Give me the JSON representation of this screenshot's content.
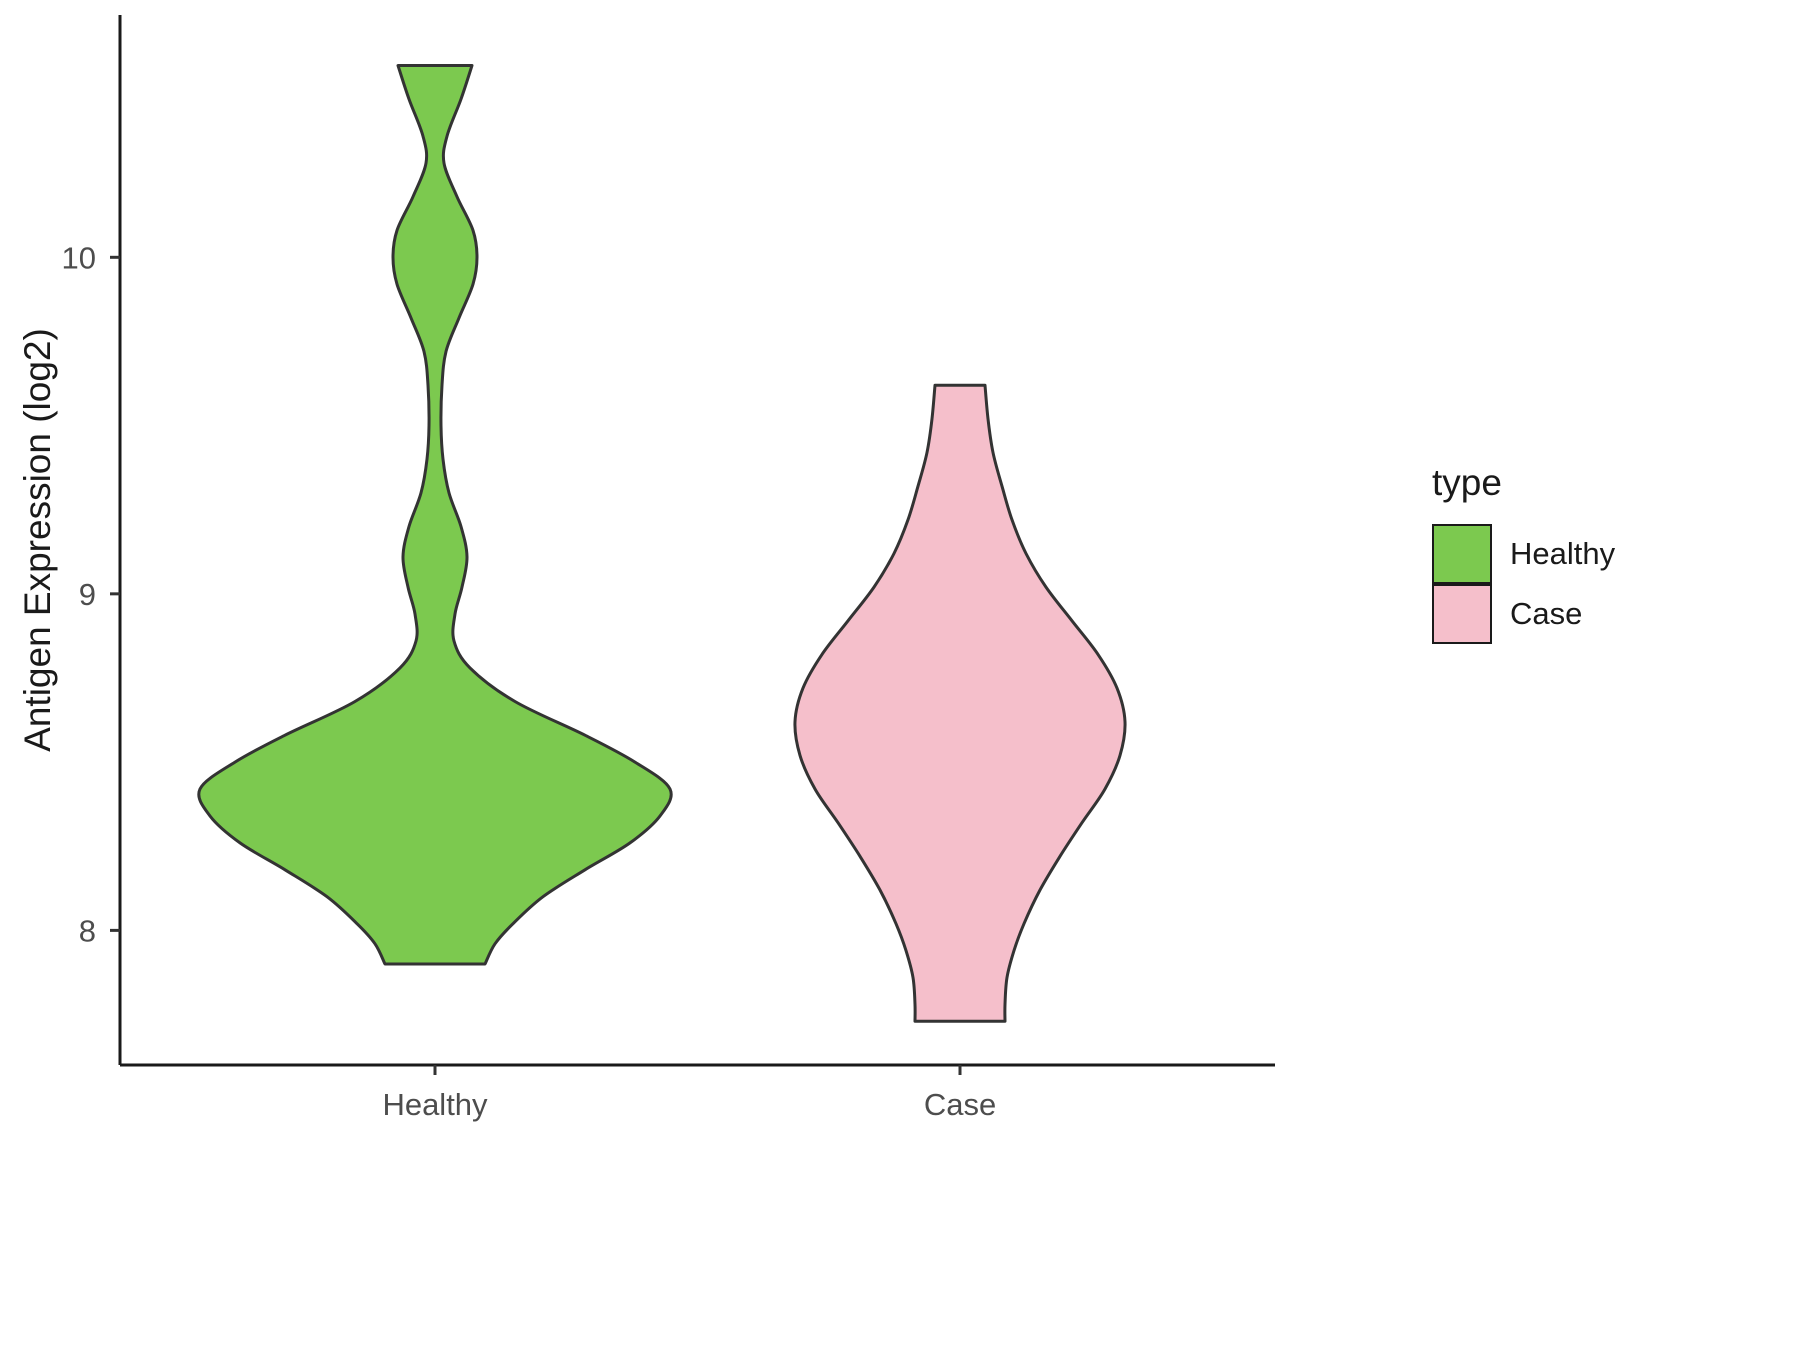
{
  "legend": {
    "title": "type",
    "entries": [
      {
        "label": "Healthy",
        "color": "#7CC94F"
      },
      {
        "label": "Case",
        "color": "#F5BFCB"
      }
    ]
  },
  "chart_data": {
    "type": "violin",
    "title": "",
    "xlabel": "",
    "ylabel": "Antigen Expression (log2)",
    "legend_title": "type",
    "categories": [
      "Healthy",
      "Case"
    ],
    "yticks": [
      8,
      9,
      10
    ],
    "ylim": [
      7.6,
      10.72
    ],
    "grid": false,
    "legend_position": "right",
    "axis_color": "#1a1a1a",
    "tick_text_color": "#4d4d4d",
    "halfwidth_unit": "px",
    "series": [
      {
        "name": "Healthy",
        "fill": "#7CC94F",
        "outline": "#333333",
        "density": [
          [
            10.57,
            37
          ],
          [
            10.47,
            26
          ],
          [
            10.36,
            12
          ],
          [
            10.28,
            9
          ],
          [
            10.18,
            22
          ],
          [
            10.08,
            38
          ],
          [
            10.0,
            42
          ],
          [
            9.92,
            38
          ],
          [
            9.82,
            24
          ],
          [
            9.72,
            11
          ],
          [
            9.62,
            7
          ],
          [
            9.5,
            6
          ],
          [
            9.4,
            8
          ],
          [
            9.3,
            14
          ],
          [
            9.2,
            26
          ],
          [
            9.11,
            32
          ],
          [
            9.02,
            27
          ],
          [
            8.94,
            20
          ],
          [
            8.86,
            19
          ],
          [
            8.78,
            35
          ],
          [
            8.68,
            80
          ],
          [
            8.58,
            150
          ],
          [
            8.5,
            200
          ],
          [
            8.42,
            235
          ],
          [
            8.34,
            225
          ],
          [
            8.26,
            195
          ],
          [
            8.18,
            150
          ],
          [
            8.1,
            108
          ],
          [
            8.02,
            78
          ],
          [
            7.96,
            60
          ],
          [
            7.9,
            50
          ]
        ]
      },
      {
        "name": "Case",
        "fill": "#F5BFCB",
        "outline": "#333333",
        "density": [
          [
            9.62,
            25
          ],
          [
            9.52,
            28
          ],
          [
            9.42,
            33
          ],
          [
            9.32,
            42
          ],
          [
            9.22,
            52
          ],
          [
            9.12,
            66
          ],
          [
            9.02,
            86
          ],
          [
            8.92,
            112
          ],
          [
            8.82,
            138
          ],
          [
            8.72,
            157
          ],
          [
            8.62,
            165
          ],
          [
            8.52,
            160
          ],
          [
            8.42,
            145
          ],
          [
            8.32,
            122
          ],
          [
            8.22,
            100
          ],
          [
            8.12,
            80
          ],
          [
            8.02,
            64
          ],
          [
            7.94,
            54
          ],
          [
            7.86,
            47
          ],
          [
            7.78,
            45
          ],
          [
            7.73,
            45
          ]
        ]
      }
    ]
  }
}
